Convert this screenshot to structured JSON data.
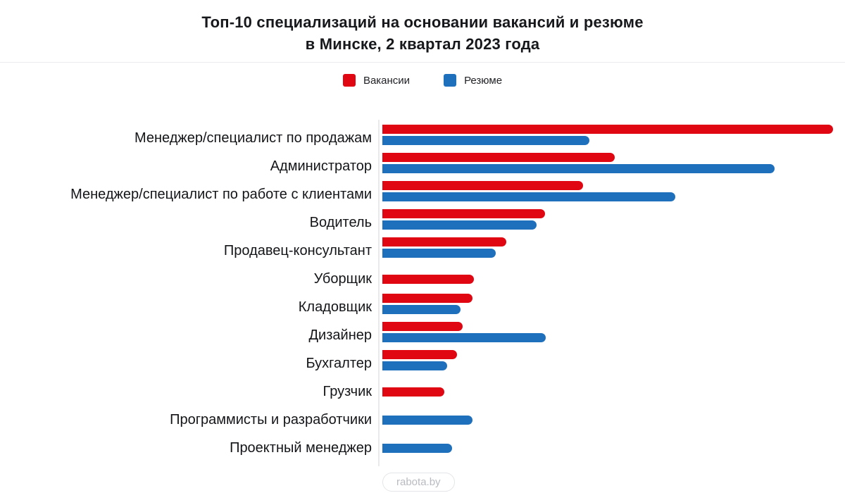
{
  "title": {
    "line1": "Топ-10 специализаций на основании вакансий и резюме",
    "line2": "в Минске, 2 квартал 2023 года"
  },
  "legend": {
    "items": [
      {
        "label": "Вакансии",
        "color": "#e00712"
      },
      {
        "label": "Резюме",
        "color": "#1e70bc"
      }
    ]
  },
  "watermark": "rabota.by",
  "colors": {
    "vacancies_red": "#e00712",
    "resume_blue": "#1e70bc",
    "text_dark": "#17181b",
    "divider_gray": "#ececef",
    "axis_gray": "#e9e9ec",
    "watermark_gray": "#b8bbc0"
  },
  "chart_data": {
    "type": "bar",
    "orientation": "horizontal",
    "title": "Топ-10 специализаций на основании вакансий и резюме в Минске, 2 квартал 2023 года",
    "legend_position": "top",
    "grid": false,
    "value_axis_shown": false,
    "units": "relative bar length in screen px (no numeric axis shown in source)",
    "categories": [
      "Менеджер/специалист по продажам",
      "Администратор",
      "Менеджер/специалист по работе с клиентами",
      "Водитель",
      "Продавец-консультант",
      "Уборщик",
      "Кладовщик",
      "Дизайнер",
      "Бухгалтер",
      "Грузчик",
      "Программисты и разработчики",
      "Проектный менеджер"
    ],
    "series": [
      {
        "name": "Вакансии",
        "color": "#e00712",
        "values": [
          640,
          330,
          285,
          231,
          176,
          130,
          128,
          114,
          106,
          88,
          null,
          null
        ]
      },
      {
        "name": "Резюме",
        "color": "#1e70bc",
        "values": [
          294,
          557,
          416,
          219,
          161,
          null,
          111,
          232,
          92,
          null,
          128,
          99
        ]
      }
    ]
  }
}
